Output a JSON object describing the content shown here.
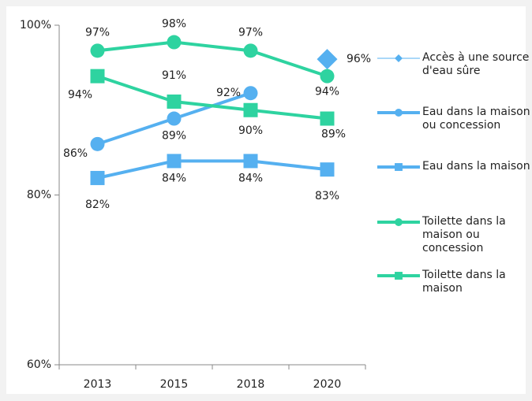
{
  "chart_data": {
    "type": "line",
    "categories": [
      "2013",
      "2015",
      "2018",
      "2020"
    ],
    "ylim": [
      60,
      100
    ],
    "yticks": [
      {
        "value": 60,
        "label": "60%"
      },
      {
        "value": 80,
        "label": "80%"
      },
      {
        "value": 100,
        "label": "100%"
      }
    ],
    "legend": "right",
    "series": [
      {
        "name": "Accès à une source d'eau sûre",
        "color": "#55b0f0",
        "marker": "diamond",
        "line_width": 1,
        "values": [
          null,
          null,
          null,
          96
        ],
        "value_labels": [
          null,
          null,
          null,
          "96%"
        ]
      },
      {
        "name": "Eau dans la maison ou concession",
        "color": "#55b0f0",
        "marker": "circle",
        "line_width": 4,
        "values": [
          86,
          89,
          92,
          null
        ],
        "value_labels": [
          "86%",
          "89%",
          "92%",
          null
        ]
      },
      {
        "name": "Eau dans la maison",
        "color": "#55b0f0",
        "marker": "square",
        "line_width": 4,
        "values": [
          82,
          84,
          84,
          83
        ],
        "value_labels": [
          "82%",
          "84%",
          "84%",
          "83%"
        ]
      },
      {
        "name": "Toilette dans la maison ou concession",
        "color": "#2ed3a0",
        "marker": "circle",
        "line_width": 4,
        "values": [
          97,
          98,
          97,
          94
        ],
        "value_labels": [
          "97%",
          "98%",
          "97%",
          "94%"
        ]
      },
      {
        "name": "Toilette dans la maison",
        "color": "#2ed3a0",
        "marker": "square",
        "line_width": 4,
        "values": [
          94,
          91,
          90,
          89
        ],
        "value_labels": [
          "94%",
          "91%",
          "90%",
          "89%"
        ]
      }
    ]
  }
}
